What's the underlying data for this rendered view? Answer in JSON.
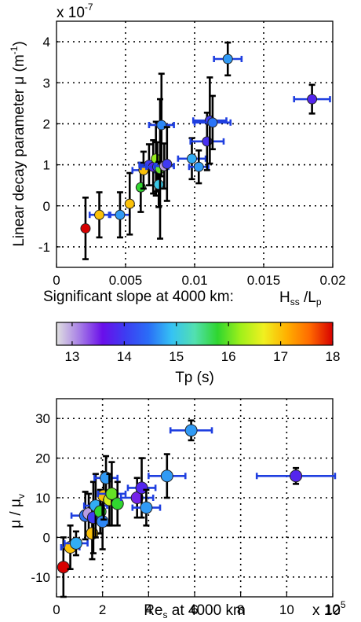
{
  "chart_data": [
    {
      "type": "scatter",
      "xlabel_main": "Significant slope at 4000 km: ",
      "xlabel_frac": {
        "num": "H",
        "num_sub": "ss",
        "sep": " /L",
        "den_sub": "p"
      },
      "ylabel": "Linear decay parameter μ (m",
      "ylabel_sup": "-1",
      "ylabel_close": ")",
      "y_multiplier": "x 10",
      "y_multiplier_exp": "-7",
      "xlim": [
        0,
        0.02
      ],
      "ylim": [
        -1.5,
        4.5
      ],
      "xticks": [
        0,
        0.005,
        0.01,
        0.015,
        0.02
      ],
      "xtick_labels": [
        "0",
        "0.005",
        "0.01",
        "0.015",
        "0.02"
      ],
      "yticks": [
        -1,
        0,
        1,
        2,
        3,
        4
      ],
      "ytick_labels": [
        "-1",
        "0",
        "1",
        "2",
        "3",
        "4"
      ],
      "grid": true,
      "points": [
        {
          "x": 0.0021,
          "y": -0.55,
          "yerr": 0.75,
          "tp": 18.0
        },
        {
          "x": 0.0031,
          "y": -0.22,
          "yerr": 0.55,
          "xerr": 0.0007,
          "tp": 17.0
        },
        {
          "x": 0.0046,
          "y": -0.22,
          "yerr": 0.55,
          "xerr": 0.0007,
          "tp": 14.7
        },
        {
          "x": 0.0053,
          "y": 0.05,
          "yerr": 0.75,
          "tp": 17.0
        },
        {
          "x": 0.0061,
          "y": 0.45,
          "yerr": 0.6,
          "tp": 15.8
        },
        {
          "x": 0.0063,
          "y": 0.87,
          "yerr": 0.45,
          "xerr": 0.0008,
          "tp": 17.0
        },
        {
          "x": 0.0067,
          "y": 1.0,
          "yerr": 0.5,
          "xerr": 0.0007,
          "tp": 14.0
        },
        {
          "x": 0.007,
          "y": 0.95,
          "yerr": 0.65,
          "xerr": 0.0009,
          "tp": 13.8
        },
        {
          "x": 0.0072,
          "y": 1.15,
          "yerr": 0.9,
          "tp": 16.2
        },
        {
          "x": 0.0073,
          "y": 0.95,
          "yerr": 0.6,
          "xerr": 0.0008,
          "tp": 14.2
        },
        {
          "x": 0.0074,
          "y": 0.52,
          "yerr": 0.55,
          "tp": 15.0
        },
        {
          "x": 0.0075,
          "y": 0.9,
          "yerr": 1.7,
          "tp": 16.0
        },
        {
          "x": 0.0076,
          "y": 1.97,
          "yerr": 1.25,
          "xerr": 0.0009,
          "tp": 14.6
        },
        {
          "x": 0.0078,
          "y": 0.97,
          "yerr": 0.55,
          "xerr": 0.0007,
          "tp": 13.0
        },
        {
          "x": 0.008,
          "y": 1.02,
          "yerr": 0.9,
          "tp": 14.0
        },
        {
          "x": 0.0098,
          "y": 1.15,
          "yerr": 0.5,
          "xerr": 0.001,
          "tp": 14.8
        },
        {
          "x": 0.0103,
          "y": 0.95,
          "yerr": 0.4,
          "xerr": 0.0007,
          "tp": 14.7
        },
        {
          "x": 0.0109,
          "y": 1.57,
          "yerr": 0.7,
          "xerr": 0.0012,
          "tp": 13.9
        },
        {
          "x": 0.0111,
          "y": 2.08,
          "yerr": 1.05,
          "xerr": 0.0012,
          "tp": 14.0
        },
        {
          "x": 0.0113,
          "y": 2.03,
          "yerr": 0.65,
          "xerr": 0.0013,
          "tp": 14.5
        },
        {
          "x": 0.0124,
          "y": 3.58,
          "yerr": 0.4,
          "xerr": 0.001,
          "tp": 14.7
        },
        {
          "x": 0.0185,
          "y": 2.6,
          "yerr": 0.35,
          "xerr": 0.0013,
          "tp": 13.8
        }
      ]
    },
    {
      "type": "colorbar",
      "label": "Tp (s)",
      "range": [
        12.7,
        18
      ],
      "ticks": [
        13,
        14,
        15,
        16,
        17,
        18
      ],
      "tick_labels": [
        "13",
        "14",
        "15",
        "16",
        "17",
        "18"
      ],
      "colormap": [
        "#e0e0e0",
        "#a67ee6",
        "#6a0eea",
        "#3d3df2",
        "#2a6ef7",
        "#35c2f4",
        "#52e0b0",
        "#2fd62f",
        "#a0f01a",
        "#f0f020",
        "#ffb000",
        "#ff6a00",
        "#d70000"
      ]
    },
    {
      "type": "scatter",
      "xlabel": "Re",
      "xlabel_sub": "s",
      "xlabel_tail": " at 4000 km",
      "ylabel": "μ / μ",
      "ylabel_sub": "v",
      "x_multiplier": "x 10",
      "x_multiplier_exp": "5",
      "xlim": [
        0,
        12
      ],
      "ylim": [
        -15,
        35
      ],
      "xticks": [
        0,
        2,
        4,
        6,
        8,
        10,
        12
      ],
      "xtick_labels": [
        "0",
        "2",
        "4",
        "6",
        "8",
        "10",
        "12"
      ],
      "yticks": [
        -10,
        0,
        10,
        20,
        30
      ],
      "ytick_labels": [
        "-10",
        "0",
        "10",
        "20",
        "30"
      ],
      "grid": true,
      "points": [
        {
          "x": 0.3,
          "y": -7.5,
          "yerr": 7.5,
          "tp": 18.0
        },
        {
          "x": 0.6,
          "y": -2.5,
          "yerr": 5.5,
          "xerr": 0.4,
          "tp": 17.0
        },
        {
          "x": 0.85,
          "y": -1.5,
          "yerr": 3.0,
          "xerr": 0.5,
          "tp": 14.8
        },
        {
          "x": 1.25,
          "y": 5.5,
          "yerr": 6.0,
          "xerr": 0.6,
          "tp": 14.5
        },
        {
          "x": 1.4,
          "y": 6.0,
          "yerr": 5.0,
          "tp": 13.0
        },
        {
          "x": 1.55,
          "y": 1.0,
          "yerr": 6.5,
          "tp": 17.0
        },
        {
          "x": 1.6,
          "y": 5.0,
          "yerr": 9.0,
          "tp": 14.0
        },
        {
          "x": 1.7,
          "y": 8.0,
          "yerr": 8.0,
          "xerr": 0.5,
          "tp": 14.8
        },
        {
          "x": 1.9,
          "y": 6.5,
          "yerr": 5.5,
          "tp": 15.8
        },
        {
          "x": 2.0,
          "y": 4.0,
          "yerr": 7.0,
          "tp": 14.6
        },
        {
          "x": 2.05,
          "y": 10.5,
          "yerr": 6.0,
          "tp": 17.0
        },
        {
          "x": 2.15,
          "y": 15.0,
          "yerr": 5.5,
          "xerr": 0.5,
          "tp": 14.7
        },
        {
          "x": 2.3,
          "y": 9.5,
          "yerr": 6.5,
          "tp": 16.5
        },
        {
          "x": 2.4,
          "y": 11.0,
          "yerr": 8.0,
          "xerr": 0.6,
          "tp": 16.0
        },
        {
          "x": 2.65,
          "y": 8.5,
          "yerr": 5.5,
          "tp": 15.8
        },
        {
          "x": 3.5,
          "y": 10.0,
          "yerr": 5.0,
          "xerr": 0.7,
          "tp": 13.5
        },
        {
          "x": 3.7,
          "y": 12.5,
          "yerr": 7.5,
          "xerr": 0.6,
          "tp": 13.8
        },
        {
          "x": 3.9,
          "y": 7.5,
          "yerr": 4.5,
          "xerr": 0.6,
          "tp": 14.7
        },
        {
          "x": 4.8,
          "y": 15.5,
          "yerr": 5.5,
          "xerr": 0.8,
          "tp": 14.7
        },
        {
          "x": 5.85,
          "y": 27.0,
          "yerr": 2.5,
          "xerr": 0.9,
          "tp": 14.7
        },
        {
          "x": 10.4,
          "y": 15.5,
          "yerr": 2.0,
          "xerr": 1.7,
          "tp": 13.8
        }
      ]
    }
  ]
}
